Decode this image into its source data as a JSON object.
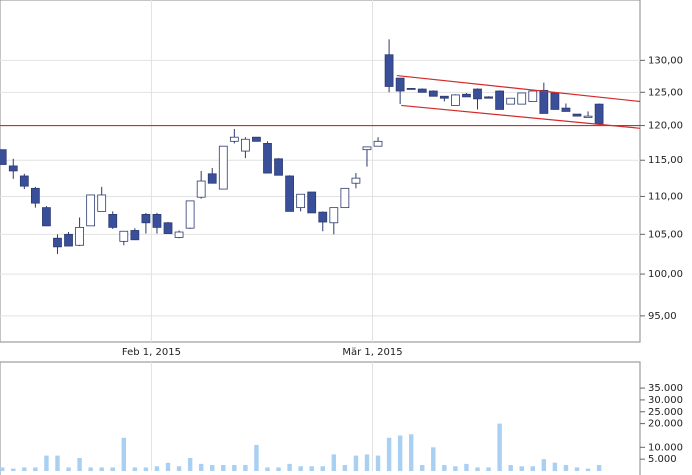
{
  "chart_data": [
    {
      "type": "candlestick",
      "log_y": true,
      "grid": true,
      "up_color": "#ffffff",
      "down_color": "#3a4f9a",
      "edge_color": "#2c3a70",
      "xlim": [
        -0.2,
        57.7
      ],
      "xticks": [
        {
          "value": 13.5,
          "label": "Feb 1, 2015"
        },
        {
          "value": 33.5,
          "label": "Mär 1, 2015"
        }
      ],
      "ylim": [
        92,
        140
      ],
      "yticks": [
        {
          "value": 95,
          "label": "95,00"
        },
        {
          "value": 100,
          "label": "100,00"
        },
        {
          "value": 105,
          "label": "105,00"
        },
        {
          "value": 110,
          "label": "110,00"
        },
        {
          "value": 115,
          "label": "115,00"
        },
        {
          "value": 120,
          "label": "120,00"
        },
        {
          "value": 125,
          "label": "125,00"
        },
        {
          "value": 130,
          "label": "130,00"
        }
      ],
      "open": [
        116.5,
        114.2,
        112.8,
        111.1,
        108.5,
        104.5,
        105.0,
        103.6,
        106.1,
        108.0,
        107.6,
        104.1,
        105.5,
        107.6,
        107.6,
        106.5,
        104.6,
        105.8,
        109.9,
        113.1,
        111.0,
        117.7,
        116.3,
        118.3,
        117.4,
        115.2,
        112.8,
        108.5,
        110.6,
        107.9,
        106.5,
        108.5,
        111.8,
        116.5,
        117.0,
        130.9,
        127.2,
        125.6,
        125.5,
        125.2,
        124.4,
        123.0,
        124.7,
        125.5,
        124.3,
        125.2,
        123.2,
        123.2,
        123.6,
        125.3,
        124.9,
        122.6,
        121.7,
        121.2,
        123.2
      ],
      "high": [
        116.5,
        115.2,
        113.1,
        111.3,
        108.7,
        105.0,
        105.3,
        107.2,
        110.2,
        111.3,
        108.0,
        105.4,
        105.8,
        107.8,
        107.8,
        106.6,
        105.5,
        109.4,
        113.5,
        113.9,
        117.0,
        119.5,
        118.3,
        118.3,
        117.7,
        115.3,
        112.9,
        110.3,
        110.6,
        108.0,
        108.5,
        111.1,
        113.2,
        116.9,
        118.3,
        133.4,
        127.2,
        125.6,
        125.6,
        125.3,
        124.4,
        124.7,
        124.9,
        125.6,
        124.4,
        125.3,
        124.1,
        124.9,
        125.2,
        126.5,
        125.0,
        123.3,
        121.7,
        122.1,
        123.3
      ],
      "low": [
        114.4,
        112.4,
        111.0,
        108.5,
        106.1,
        102.5,
        103.5,
        103.5,
        106.1,
        108.0,
        105.7,
        103.6,
        104.3,
        105.1,
        105.1,
        105.1,
        104.5,
        105.7,
        109.7,
        111.8,
        111.0,
        117.4,
        115.3,
        117.7,
        113.2,
        112.9,
        108.0,
        108.0,
        107.8,
        105.4,
        105.0,
        108.5,
        111.1,
        114.1,
        117.0,
        125.0,
        123.2,
        125.5,
        125.0,
        124.4,
        123.6,
        123.0,
        124.3,
        122.4,
        124.1,
        122.4,
        123.2,
        123.2,
        123.6,
        121.8,
        122.4,
        122.1,
        121.4,
        121.2,
        120.3
      ],
      "close": [
        114.4,
        113.5,
        111.4,
        109.1,
        106.1,
        103.4,
        103.5,
        105.9,
        110.2,
        110.2,
        105.9,
        105.4,
        104.3,
        106.5,
        105.9,
        105.1,
        105.3,
        109.4,
        112.1,
        111.8,
        117.0,
        118.3,
        118.0,
        117.7,
        113.2,
        112.9,
        108.0,
        110.3,
        107.8,
        106.6,
        108.5,
        111.1,
        112.5,
        116.9,
        117.7,
        125.9,
        125.2,
        125.5,
        125.0,
        124.4,
        124.1,
        124.6,
        124.3,
        124.0,
        124.1,
        122.4,
        124.1,
        124.9,
        125.2,
        121.8,
        122.4,
        122.1,
        121.4,
        121.4,
        120.3
      ],
      "lines": [
        {
          "color": "#d42a2a",
          "x": [
            -0.2,
            57.7
          ],
          "y": [
            120,
            120
          ]
        },
        {
          "color": "#d42a2a",
          "x": [
            35.7,
            57.7
          ],
          "y": [
            127.6,
            123.6
          ]
        },
        {
          "color": "#d42a2a",
          "x": [
            36.1,
            57.7
          ],
          "y": [
            123.0,
            119.6
          ]
        }
      ]
    },
    {
      "type": "bar",
      "color": "#a9cff2",
      "xlim": [
        -0.2,
        57.7
      ],
      "ylim": [
        0,
        46000
      ],
      "yticks": [
        {
          "value": 5000,
          "label": "5.000"
        },
        {
          "value": 10000,
          "label": "10.000"
        },
        {
          "value": 20000,
          "label": "20.000"
        },
        {
          "value": 25000,
          "label": "25.000"
        },
        {
          "value": 30000,
          "label": "30.000"
        },
        {
          "value": 35000,
          "label": "35.000"
        }
      ],
      "values": [
        1500,
        1000,
        1500,
        1500,
        6500,
        6500,
        1500,
        5500,
        1500,
        1500,
        1500,
        14000,
        1500,
        1500,
        2000,
        3500,
        2000,
        5500,
        3000,
        2500,
        2500,
        2500,
        2500,
        11000,
        1500,
        1500,
        3000,
        2000,
        2000,
        2000,
        7000,
        2500,
        6500,
        7000,
        6500,
        14000,
        15000,
        15500,
        2500,
        10000,
        2500,
        2000,
        3000,
        1500,
        1500,
        20000,
        2500,
        2000,
        2000,
        5000,
        3500,
        2500,
        1500,
        1000,
        2500
      ]
    }
  ]
}
